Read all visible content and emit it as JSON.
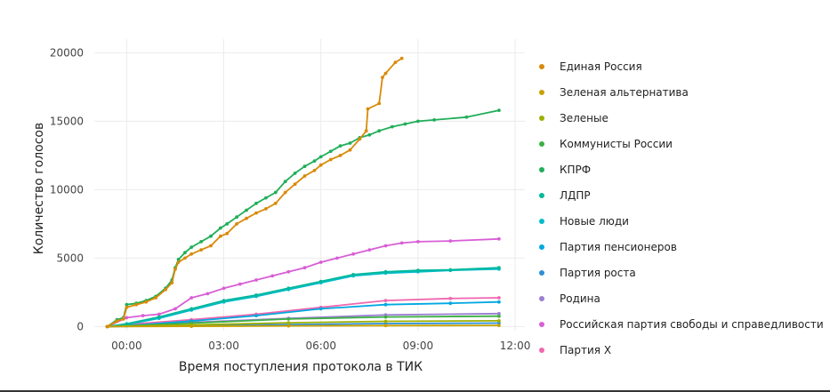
{
  "chart_data": {
    "type": "line",
    "title": "",
    "xlabel": "Время поступления протокола в ТИК",
    "ylabel": "Количество голосов",
    "x_ticks": [
      "00:00",
      "03:00",
      "06:00",
      "09:00",
      "12:00"
    ],
    "x_tick_hours": [
      0,
      3,
      6,
      9,
      12
    ],
    "xlim_hours": [
      -1.0,
      12.3
    ],
    "y_ticks": [
      0,
      5000,
      10000,
      15000,
      20000
    ],
    "ylim": [
      -300,
      21000
    ],
    "grid": true,
    "legend_position": "right",
    "series": [
      {
        "name": "Единая Россия",
        "color": "#D98A09",
        "x": [
          -0.6,
          -0.3,
          -0.1,
          0.0,
          0.3,
          0.6,
          0.9,
          1.2,
          1.4,
          1.5,
          1.6,
          1.8,
          2.0,
          2.3,
          2.6,
          2.9,
          3.1,
          3.4,
          3.7,
          4.0,
          4.3,
          4.6,
          4.9,
          5.2,
          5.5,
          5.8,
          6.0,
          6.3,
          6.6,
          6.9,
          7.2,
          7.4,
          7.45,
          7.8,
          7.9,
          8.0,
          8.3,
          8.5
        ],
        "values": [
          0,
          400,
          550,
          1400,
          1600,
          1800,
          2100,
          2700,
          3200,
          4200,
          4700,
          5000,
          5300,
          5600,
          5900,
          6600,
          6800,
          7500,
          7900,
          8300,
          8600,
          9000,
          9800,
          10400,
          11000,
          11400,
          11800,
          12200,
          12500,
          12900,
          13700,
          14300,
          15900,
          16300,
          18200,
          18500,
          19300,
          19600
        ]
      },
      {
        "name": "Зеленая альтернатива",
        "color": "#C9A000",
        "x": [
          -0.6,
          2.0,
          5.0,
          8.0,
          11.5
        ],
        "values": [
          0,
          20,
          50,
          70,
          80
        ]
      },
      {
        "name": "Зеленые",
        "color": "#9DB000",
        "x": [
          -0.6,
          2.0,
          5.0,
          8.0,
          11.5
        ],
        "values": [
          0,
          120,
          280,
          380,
          420
        ]
      },
      {
        "name": "Коммунисты России",
        "color": "#3CB043",
        "x": [
          -0.6,
          2.0,
          5.0,
          8.0,
          11.5
        ],
        "values": [
          0,
          250,
          550,
          700,
          760
        ]
      },
      {
        "name": "КПРФ",
        "color": "#1FAE58",
        "x": [
          -0.6,
          -0.3,
          -0.1,
          0.0,
          0.3,
          0.6,
          0.9,
          1.2,
          1.4,
          1.5,
          1.6,
          1.8,
          2.0,
          2.3,
          2.6,
          2.9,
          3.1,
          3.4,
          3.7,
          4.0,
          4.3,
          4.6,
          4.9,
          5.2,
          5.5,
          5.8,
          6.0,
          6.3,
          6.6,
          6.9,
          7.2,
          7.5,
          7.8,
          8.2,
          8.6,
          9.0,
          9.5,
          10.5,
          11.5
        ],
        "values": [
          0,
          500,
          650,
          1600,
          1700,
          1900,
          2200,
          2800,
          3400,
          4300,
          4900,
          5400,
          5800,
          6200,
          6600,
          7200,
          7500,
          8000,
          8500,
          9000,
          9400,
          9800,
          10600,
          11200,
          11700,
          12100,
          12400,
          12800,
          13200,
          13400,
          13800,
          14000,
          14300,
          14600,
          14800,
          15000,
          15100,
          15300,
          15800
        ]
      },
      {
        "name": "ЛДПР",
        "color": "#00B89A",
        "x": [
          -0.6,
          0.0,
          1.0,
          2.0,
          3.0,
          4.0,
          5.0,
          6.0,
          7.0,
          8.0,
          9.0,
          10.0,
          11.5
        ],
        "values": [
          0,
          200,
          700,
          1300,
          1900,
          2300,
          2800,
          3300,
          3800,
          4000,
          4100,
          4150,
          4300
        ]
      },
      {
        "name": "Новые люди",
        "color": "#00BCCB",
        "x": [
          -0.6,
          0.0,
          1.0,
          2.0,
          3.0,
          4.0,
          5.0,
          6.0,
          7.0,
          8.0,
          9.0,
          10.0,
          11.5
        ],
        "values": [
          0,
          150,
          600,
          1200,
          1800,
          2200,
          2700,
          3200,
          3700,
          3900,
          4000,
          4100,
          4200
        ]
      },
      {
        "name": "Партия пенсионеров",
        "color": "#00A8E0",
        "x": [
          -0.6,
          0.0,
          2.0,
          4.0,
          6.0,
          8.0,
          10.0,
          11.5
        ],
        "values": [
          0,
          60,
          400,
          800,
          1300,
          1600,
          1700,
          1800
        ]
      },
      {
        "name": "Партия роста",
        "color": "#2C8FD6",
        "x": [
          -0.6,
          2.0,
          5.0,
          8.0,
          11.5
        ],
        "values": [
          0,
          60,
          150,
          220,
          250
        ]
      },
      {
        "name": "Родина",
        "color": "#9A7FD1",
        "x": [
          -0.6,
          2.0,
          5.0,
          8.0,
          11.5
        ],
        "values": [
          0,
          300,
          600,
          850,
          950
        ]
      },
      {
        "name": "Российская партия свободы и справедливости",
        "color": "#D85ED6",
        "x": [
          -0.6,
          0.0,
          0.5,
          1.0,
          1.5,
          2.0,
          2.5,
          3.0,
          3.5,
          4.0,
          4.5,
          5.0,
          5.5,
          6.0,
          6.5,
          7.0,
          7.5,
          8.0,
          8.5,
          9.0,
          10.0,
          11.5
        ],
        "values": [
          0,
          650,
          800,
          900,
          1300,
          2100,
          2400,
          2800,
          3100,
          3400,
          3700,
          4000,
          4300,
          4700,
          5000,
          5300,
          5600,
          5900,
          6100,
          6200,
          6250,
          6400
        ]
      },
      {
        "name": "Партия X",
        "color": "#F066B0",
        "x": [
          -0.6,
          0.0,
          2.0,
          4.0,
          6.0,
          8.0,
          10.0,
          11.5
        ],
        "values": [
          0,
          150,
          500,
          900,
          1400,
          1900,
          2050,
          2100
        ]
      }
    ]
  }
}
